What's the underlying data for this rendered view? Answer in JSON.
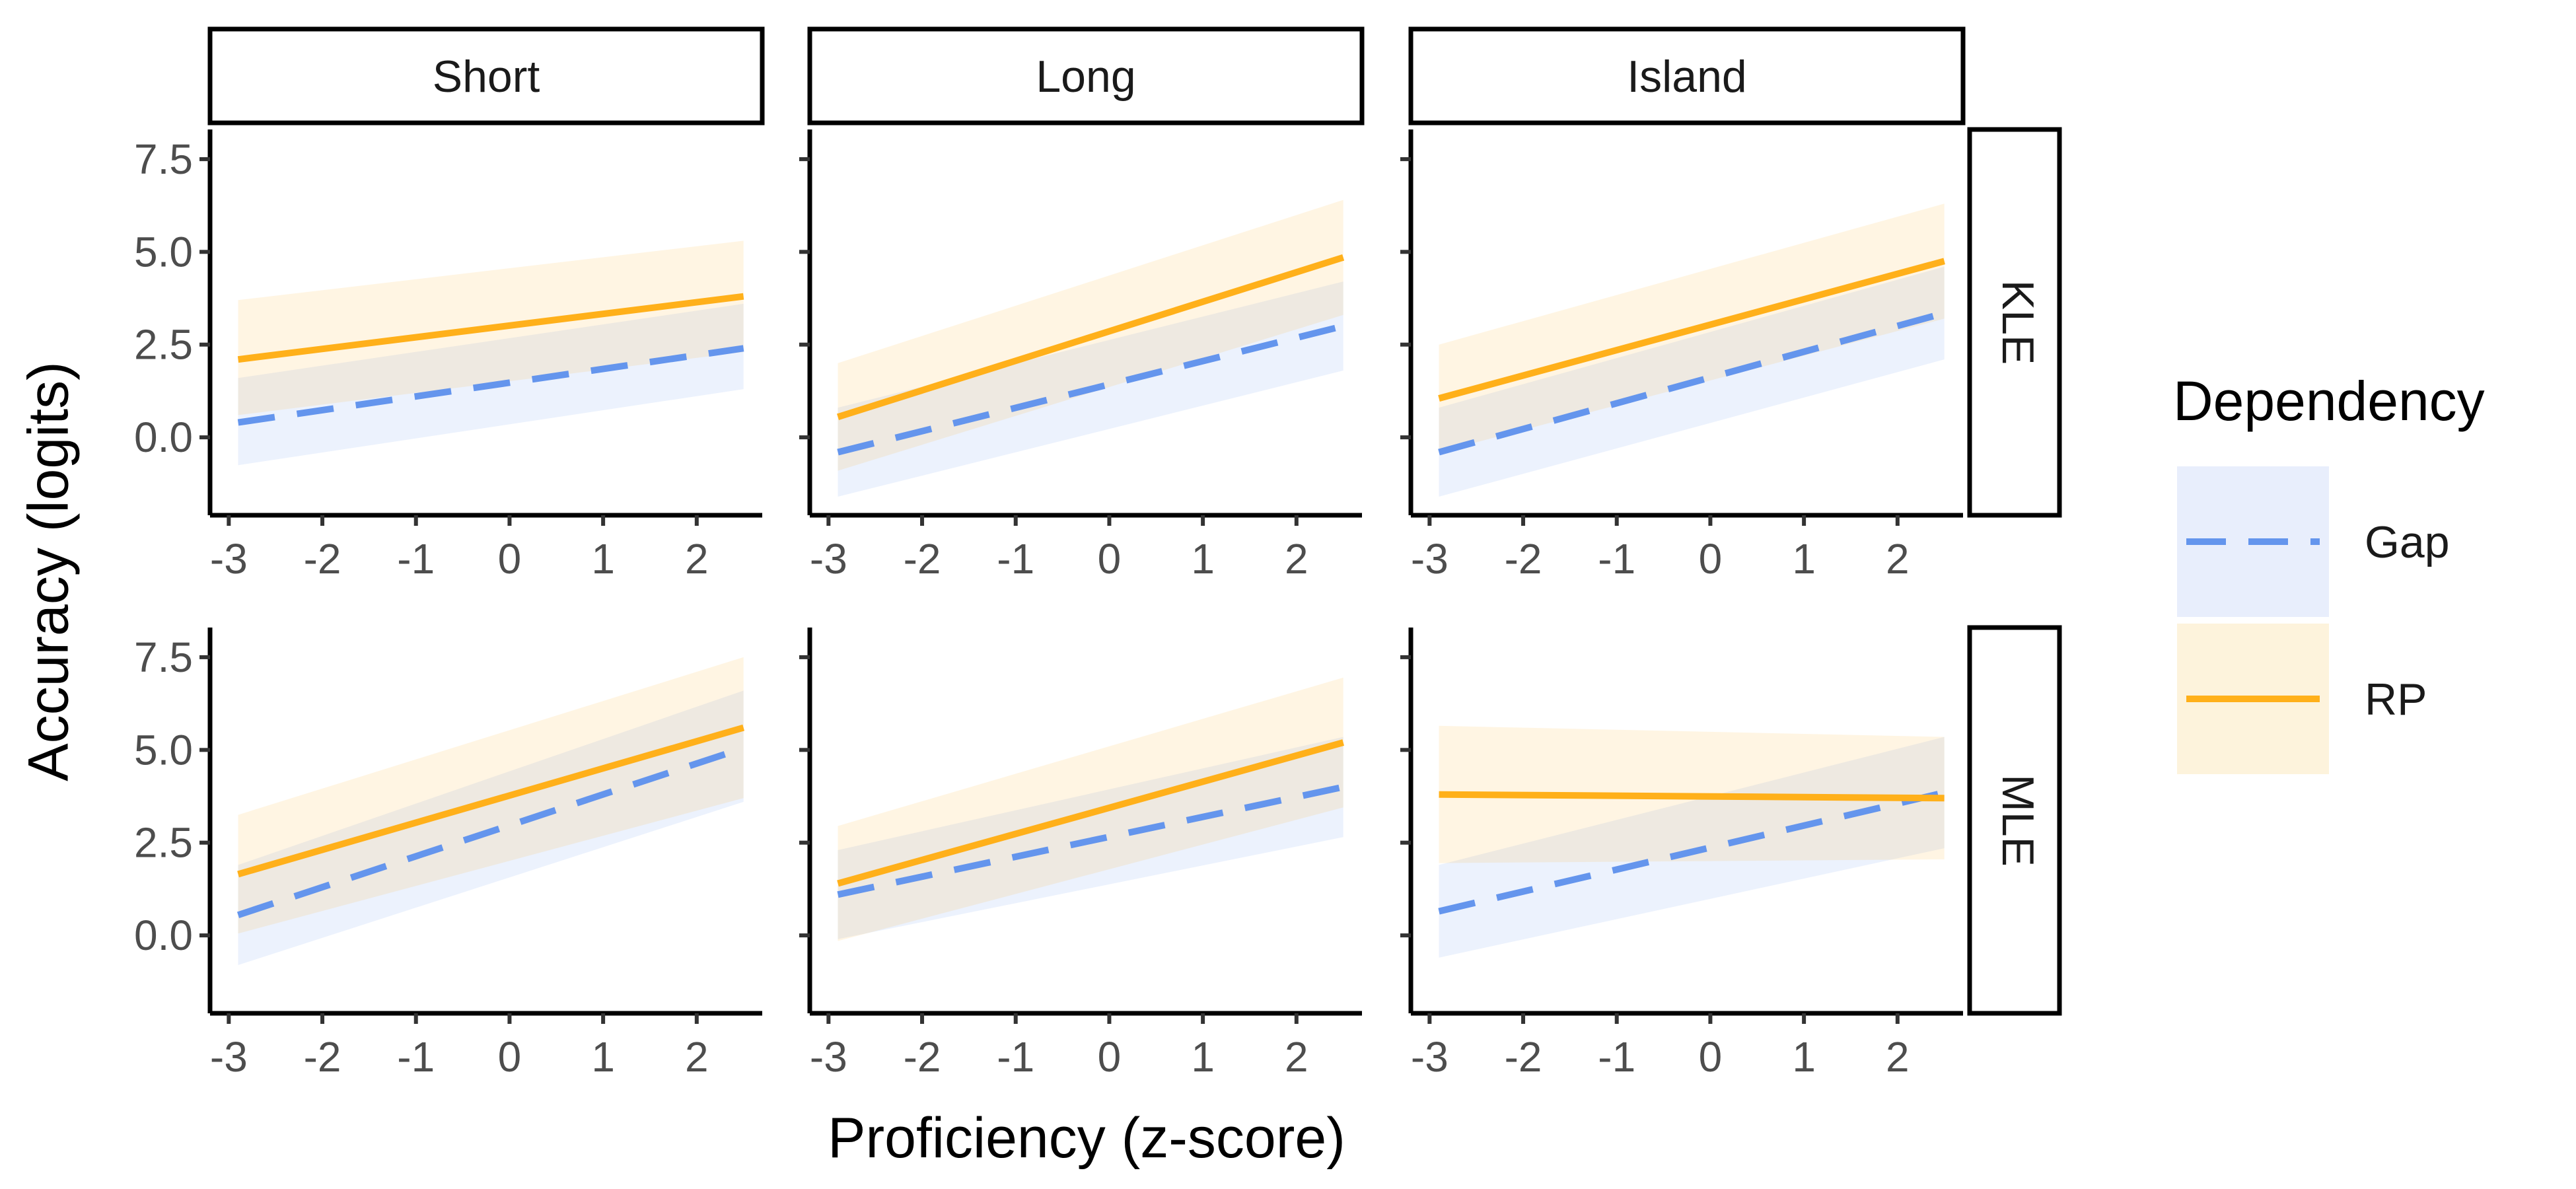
{
  "chart_data": {
    "type": "line",
    "xlabel": "Proficiency (z-score)",
    "ylabel": "Accuracy (logits)",
    "xlim": [
      -3.2,
      2.7
    ],
    "ylim": [
      -2.1,
      8.3
    ],
    "x_ticks": [
      -3,
      -2,
      -1,
      0,
      1,
      2
    ],
    "x_tick_labels": [
      "-3",
      "-2",
      "-1",
      "0",
      "1",
      "2"
    ],
    "y_ticks": [
      0.0,
      2.5,
      5.0,
      7.5
    ],
    "y_tick_labels": [
      "0.0",
      "2.5",
      "5.0",
      "7.5"
    ],
    "column_facets": [
      "Short",
      "Long",
      "Island"
    ],
    "row_facets": [
      "KLE",
      "MLE"
    ],
    "grid": false,
    "legend": {
      "title": "Dependency",
      "position": "right",
      "entries": [
        {
          "name": "Gap",
          "color": "#6495ED",
          "fill": "#E8EEFC",
          "linetype": "dashed"
        },
        {
          "name": "RP",
          "color": "#FFB01A",
          "fill": "#FDF3DC",
          "linetype": "solid"
        }
      ]
    },
    "panels": [
      {
        "row": "KLE",
        "col": "Short",
        "x": [
          -2.9,
          2.5
        ],
        "series": [
          {
            "name": "Gap",
            "values": [
              0.4,
              2.4
            ],
            "lower": [
              -0.75,
              1.3
            ],
            "upper": [
              1.6,
              3.6
            ]
          },
          {
            "name": "RP",
            "values": [
              2.1,
              3.8
            ],
            "lower": [
              0.6,
              2.3
            ],
            "upper": [
              3.7,
              5.3
            ]
          }
        ]
      },
      {
        "row": "KLE",
        "col": "Long",
        "x": [
          -2.9,
          2.5
        ],
        "series": [
          {
            "name": "Gap",
            "values": [
              -0.4,
              3.0
            ],
            "lower": [
              -1.6,
              1.8
            ],
            "upper": [
              0.8,
              4.2
            ]
          },
          {
            "name": "RP",
            "values": [
              0.55,
              4.85
            ],
            "lower": [
              -0.9,
              3.3
            ],
            "upper": [
              2.0,
              6.4
            ]
          }
        ]
      },
      {
        "row": "KLE",
        "col": "Island",
        "x": [
          -2.9,
          2.5
        ],
        "series": [
          {
            "name": "Gap",
            "values": [
              -0.4,
              3.35
            ],
            "lower": [
              -1.6,
              2.1
            ],
            "upper": [
              0.8,
              4.6
            ]
          },
          {
            "name": "RP",
            "values": [
              1.05,
              4.75
            ],
            "lower": [
              -0.4,
              3.2
            ],
            "upper": [
              2.5,
              6.3
            ]
          }
        ]
      },
      {
        "row": "MLE",
        "col": "Short",
        "x": [
          -2.9,
          2.5
        ],
        "series": [
          {
            "name": "Gap",
            "values": [
              0.55,
              5.05
            ],
            "lower": [
              -0.8,
              3.6
            ],
            "upper": [
              1.9,
              6.6
            ]
          },
          {
            "name": "RP",
            "values": [
              1.65,
              5.6
            ],
            "lower": [
              0.05,
              3.7
            ],
            "upper": [
              3.25,
              7.5
            ]
          }
        ]
      },
      {
        "row": "MLE",
        "col": "Long",
        "x": [
          -2.9,
          2.5
        ],
        "series": [
          {
            "name": "Gap",
            "values": [
              1.1,
              4.0
            ],
            "lower": [
              -0.1,
              2.65
            ],
            "upper": [
              2.3,
              5.35
            ]
          },
          {
            "name": "RP",
            "values": [
              1.4,
              5.2
            ],
            "lower": [
              -0.15,
              3.45
            ],
            "upper": [
              2.95,
              6.95
            ]
          }
        ]
      },
      {
        "row": "MLE",
        "col": "Island",
        "x": [
          -2.9,
          2.5
        ],
        "series": [
          {
            "name": "Gap",
            "values": [
              0.65,
              3.85
            ],
            "lower": [
              -0.6,
              2.35
            ],
            "upper": [
              1.9,
              5.35
            ]
          },
          {
            "name": "RP",
            "values": [
              3.8,
              3.7
            ],
            "lower": [
              1.95,
              2.05
            ],
            "upper": [
              5.65,
              5.35
            ]
          }
        ]
      }
    ]
  }
}
